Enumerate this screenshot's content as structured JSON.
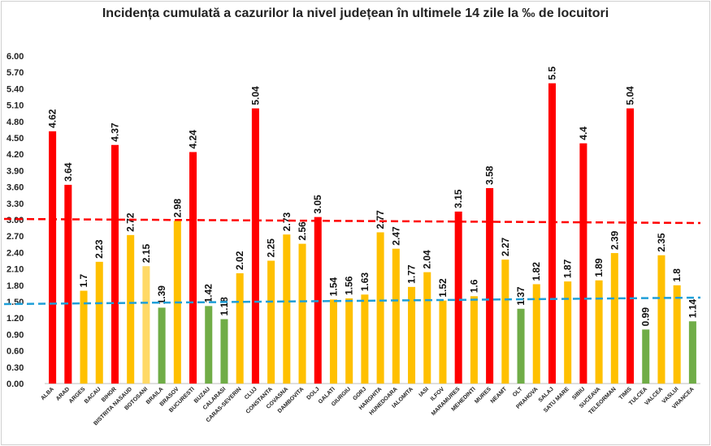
{
  "chart_data": {
    "type": "bar",
    "title": "Incidența cumulată a cazurilor la nivel județean în ultimele 14 zile la ‰ de locuitori",
    "xlabel": "",
    "ylabel": "",
    "ylim": [
      0,
      6
    ],
    "yticks": [
      "0.00",
      "0.30",
      "0.60",
      "0.90",
      "1.20",
      "1.50",
      "1.80",
      "2.10",
      "2.40",
      "2.70",
      "3.00",
      "3.30",
      "3.60",
      "3.90",
      "4.20",
      "4.50",
      "4.80",
      "5.10",
      "5.40",
      "5.70",
      "6.00"
    ],
    "grid": false,
    "legend": "none",
    "colors": {
      "red": "#ff0000",
      "yellow": "#ffc000",
      "light_yellow": "#ffd966",
      "green": "#70ad47",
      "red_line": "#ff0000",
      "blue_line": "#1f9fd8"
    },
    "reference_lines": [
      {
        "value": 3.0,
        "color": "#ff0000",
        "style": "dashed"
      },
      {
        "value": 1.5,
        "color": "#1f9fd8",
        "style": "dashed"
      }
    ],
    "categories": [
      "ALBA",
      "ARAD",
      "ARGES",
      "BACAU",
      "BIHOR",
      "BISTRITA NASAUD",
      "BOTOSANI",
      "BRAILA",
      "BRASOV",
      "BUCURESTI",
      "BUZAU",
      "CALARASI",
      "CARAS-SEVERIN",
      "CLUJ",
      "CONSTANTA",
      "COVASNA",
      "DAMBOVITA",
      "DOLJ",
      "GALATI",
      "GIURGIU",
      "GORJ",
      "HARGHITA",
      "HUNEDOARA",
      "IALOMITA",
      "IASI",
      "ILFOV",
      "MARAMURES",
      "MEHEDINTI",
      "MURES",
      "NEAMT",
      "OLT",
      "PRAHOVA",
      "SALAJ",
      "SATU MARE",
      "SIBIU",
      "SUCEAVA",
      "TELEORMAN",
      "TIMIS",
      "TULCEA",
      "VALCEA",
      "VASLUI",
      "VRANCEA"
    ],
    "values": [
      4.62,
      3.64,
      1.7,
      2.23,
      4.37,
      2.72,
      2.15,
      1.39,
      2.98,
      4.24,
      1.42,
      1.18,
      2.02,
      5.04,
      2.25,
      2.73,
      2.56,
      3.05,
      1.54,
      1.56,
      1.63,
      2.77,
      2.47,
      1.77,
      2.04,
      1.52,
      3.15,
      1.6,
      3.58,
      2.27,
      1.37,
      1.82,
      5.5,
      1.87,
      4.4,
      1.89,
      2.39,
      5.04,
      0.99,
      2.35,
      1.8,
      1.14
    ],
    "labels": [
      "4.62",
      "3.64",
      "1.7",
      "2.23",
      "4.37",
      "2.72",
      "2.15",
      "1.39",
      "2.98",
      "4.24",
      "1.42",
      "1.18",
      "2.02",
      "5.04",
      "2.25",
      "2.73",
      "2.56",
      "3.05",
      "1.54",
      "1.56",
      "1.63",
      "2.77",
      "2.47",
      "1.77",
      "2.04",
      "1.52",
      "3.15",
      "1.6",
      "3.58",
      "2.27",
      "1.37",
      "1.82",
      "5.5",
      "1.87",
      "4.4",
      "1.89",
      "2.39",
      "5.04",
      "0.99",
      "2.35",
      "1.8",
      "1.14"
    ],
    "bar_colors": [
      "red",
      "red",
      "yellow",
      "yellow",
      "red",
      "yellow",
      "light_yellow",
      "green",
      "yellow",
      "red",
      "green",
      "green",
      "yellow",
      "red",
      "yellow",
      "yellow",
      "yellow",
      "red",
      "yellow",
      "yellow",
      "yellow",
      "yellow",
      "yellow",
      "yellow",
      "yellow",
      "yellow",
      "red",
      "yellow",
      "red",
      "yellow",
      "green",
      "yellow",
      "red",
      "yellow",
      "red",
      "yellow",
      "yellow",
      "red",
      "green",
      "yellow",
      "yellow",
      "green"
    ]
  }
}
